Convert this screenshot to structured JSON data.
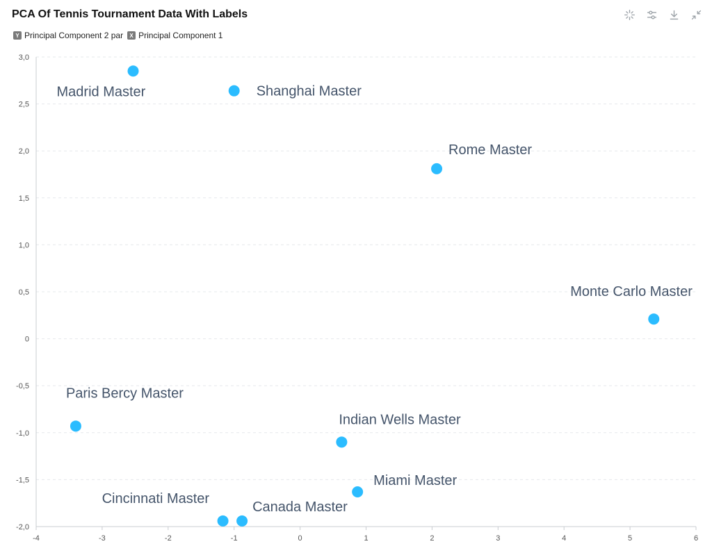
{
  "header": {
    "title": "PCA Of Tennis Tournament Data With Labels",
    "tools": [
      {
        "name": "select-tool-icon"
      },
      {
        "name": "settings-sliders-icon"
      },
      {
        "name": "download-icon"
      },
      {
        "name": "collapse-icon"
      }
    ]
  },
  "axis_legend": {
    "y_key": "Y",
    "y_label": "Principal Component 2 par",
    "x_key": "X",
    "x_label": "Principal Component 1"
  },
  "colors": {
    "point": "#2bbcff",
    "grid": "#e6e8eb",
    "axis": "#c9ccd1",
    "label": "#44546a"
  },
  "chart_data": {
    "type": "scatter",
    "title": "PCA Of Tennis Tournament Data With Labels",
    "xlabel": "Principal Component 1",
    "ylabel": "Principal Component 2 par",
    "xlim": [
      -4,
      6
    ],
    "ylim": [
      -2,
      3
    ],
    "x_ticks": [
      "-4",
      "-3",
      "-2",
      "-1",
      "0",
      "1",
      "2",
      "3",
      "4",
      "5",
      "6"
    ],
    "y_ticks": [
      "3,0",
      "2,5",
      "2,0",
      "1,5",
      "1,0",
      "0,5",
      "0",
      "-0,5",
      "-1,0",
      "-1,5",
      "-2,0"
    ],
    "grid": "horizontal dashed",
    "points": [
      {
        "label": "Madrid Master",
        "x": -2.53,
        "y": 2.85
      },
      {
        "label": "Shanghai Master",
        "x": -1.0,
        "y": 2.64
      },
      {
        "label": "Rome Master",
        "x": 2.07,
        "y": 1.81
      },
      {
        "label": "Monte Carlo Master",
        "x": 5.36,
        "y": 0.21
      },
      {
        "label": "Paris Bercy Master",
        "x": -3.4,
        "y": -0.93
      },
      {
        "label": "Indian Wells Master",
        "x": 0.63,
        "y": -1.1
      },
      {
        "label": "Miami Master",
        "x": 0.87,
        "y": -1.63
      },
      {
        "label": "Cincinnati Master",
        "x": -1.17,
        "y": -1.94
      },
      {
        "label": "Canada Master",
        "x": -0.88,
        "y": -1.94
      }
    ]
  }
}
